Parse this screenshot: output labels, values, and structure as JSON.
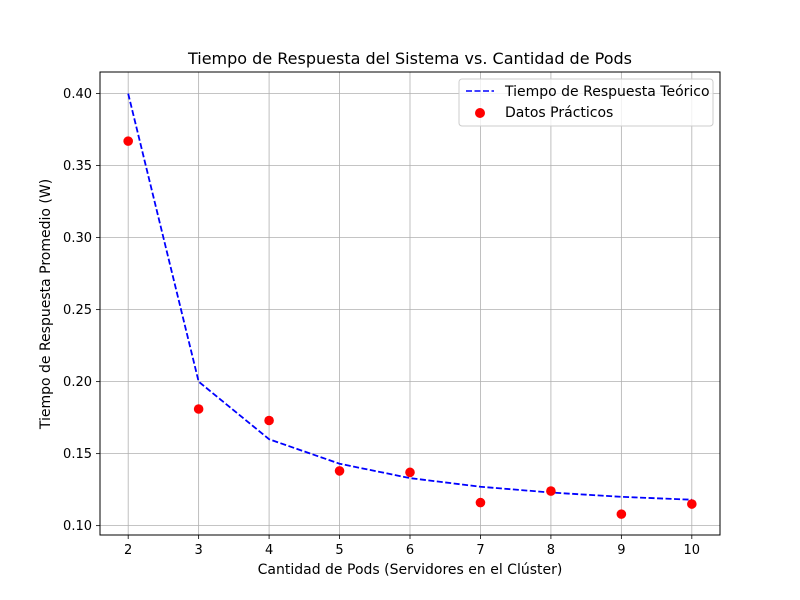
{
  "chart_data": {
    "type": "line",
    "title": "Tiempo de Respuesta del Sistema vs. Cantidad de Pods",
    "xlabel": "Cantidad de Pods (Servidores en el Clúster)",
    "ylabel": "Tiempo de Respuesta Promedio (W)",
    "x": [
      2,
      3,
      4,
      5,
      6,
      7,
      8,
      9,
      10
    ],
    "xticks": [
      "2",
      "3",
      "4",
      "5",
      "6",
      "7",
      "8",
      "9",
      "10"
    ],
    "yticks": [
      "0.10",
      "0.15",
      "0.20",
      "0.25",
      "0.30",
      "0.35",
      "0.40"
    ],
    "xlim": [
      1.6,
      10.4
    ],
    "ylim": [
      0.0935,
      0.415
    ],
    "grid": true,
    "legend_position": "top-right",
    "series": [
      {
        "name": "Tiempo de Respuesta Teórico",
        "kind": "line",
        "style": "dashed",
        "color": "#0000ff",
        "values": [
          0.4,
          0.2,
          0.16,
          0.143,
          0.133,
          0.127,
          0.123,
          0.12,
          0.118
        ]
      },
      {
        "name": "Datos Prácticos",
        "kind": "scatter",
        "color": "#ff0000",
        "values": [
          0.367,
          0.181,
          0.173,
          0.138,
          0.137,
          0.116,
          0.124,
          0.108,
          0.115
        ]
      }
    ]
  }
}
